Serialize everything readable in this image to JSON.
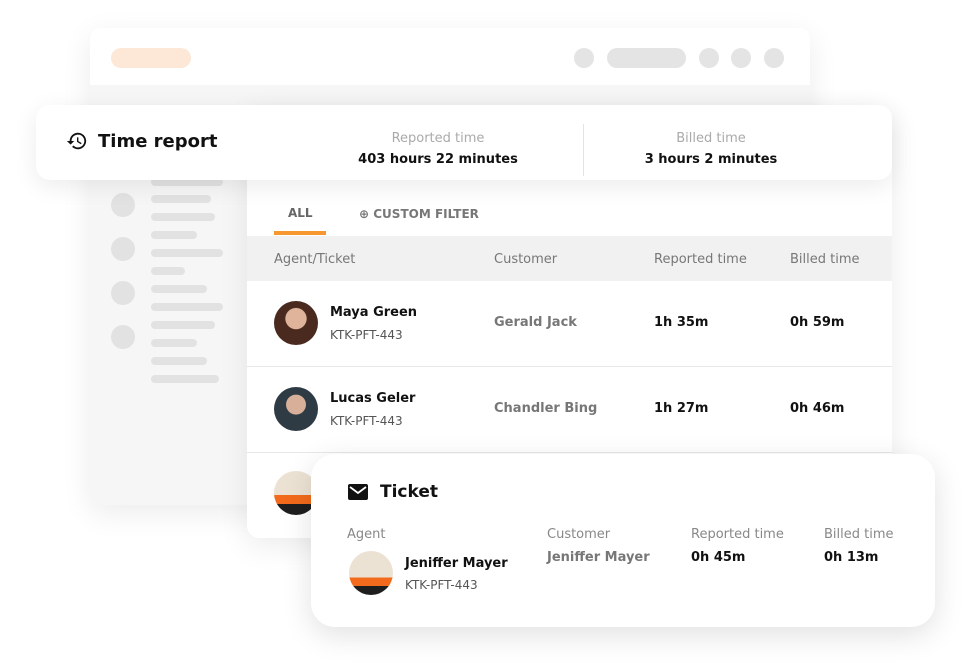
{
  "header": {
    "title": "Time report",
    "reported_label": "Reported time",
    "reported_value": "403 hours 22 minutes",
    "billed_label": "Billed time",
    "billed_value": "3 hours 2 minutes"
  },
  "tabs": [
    {
      "label": "ALL",
      "active": true
    },
    {
      "label": "CUSTOM FILTER",
      "icon": "plus-circle-icon"
    }
  ],
  "table": {
    "columns": [
      "Agent/Ticket",
      "Customer",
      "Reported time",
      "Billed time"
    ],
    "rows": [
      {
        "agent": "Maya Green",
        "ticket": "KTK-PFT-443",
        "customer": "Gerald Jack",
        "reported": "1h 35m",
        "billed": "0h 59m"
      },
      {
        "agent": "Lucas Geler",
        "ticket": "KTK-PFT-443",
        "customer": "Chandler Bing",
        "reported": "1h 27m",
        "billed": "0h 46m"
      }
    ]
  },
  "ticket": {
    "title": "Ticket",
    "icon": "envelope-icon",
    "agent_label": "Agent",
    "customer_label": "Customer",
    "reported_label": "Reported time",
    "billed_label": "Billed time",
    "agent": "Jeniffer Mayer",
    "ticket": "KTK-PFT-443",
    "customer": "Jeniffer Mayer",
    "reported": "0h 45m",
    "billed": "0h 13m"
  },
  "colors": {
    "accent": "#f7972f",
    "accent_light": "#fde7d6"
  }
}
